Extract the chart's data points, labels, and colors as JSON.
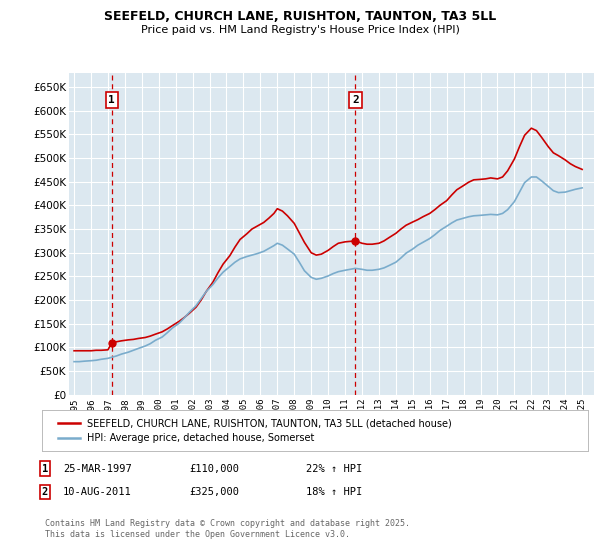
{
  "title": "SEEFELD, CHURCH LANE, RUISHTON, TAUNTON, TA3 5LL",
  "subtitle": "Price paid vs. HM Land Registry's House Price Index (HPI)",
  "legend_label_red": "SEEFELD, CHURCH LANE, RUISHTON, TAUNTON, TA3 5LL (detached house)",
  "legend_label_blue": "HPI: Average price, detached house, Somerset",
  "footnote": "Contains HM Land Registry data © Crown copyright and database right 2025.\nThis data is licensed under the Open Government Licence v3.0.",
  "annotation1_label": "1",
  "annotation1_date": "25-MAR-1997",
  "annotation1_price": "£110,000",
  "annotation1_hpi": "22% ↑ HPI",
  "annotation2_label": "2",
  "annotation2_date": "10-AUG-2011",
  "annotation2_price": "£325,000",
  "annotation2_hpi": "18% ↑ HPI",
  "red_color": "#cc0000",
  "blue_color": "#7aaccc",
  "dashed_red": "#cc0000",
  "background_plot": "#dce8f0",
  "background_fig": "#ffffff",
  "grid_color": "#ffffff",
  "annotation_box_color": "#cc0000",
  "ylim": [
    0,
    680000
  ],
  "yticks": [
    0,
    50000,
    100000,
    150000,
    200000,
    250000,
    300000,
    350000,
    400000,
    450000,
    500000,
    550000,
    600000,
    650000
  ],
  "xlim_start": 1994.7,
  "xlim_end": 2025.7,
  "sale1_x": 1997.23,
  "sale1_y": 110000,
  "sale2_x": 2011.61,
  "sale2_y": 325000,
  "red_x": [
    1995.0,
    1995.3,
    1995.6,
    1996.0,
    1996.3,
    1996.6,
    1997.0,
    1997.23,
    1997.5,
    1997.8,
    1998.2,
    1998.5,
    1998.8,
    1999.2,
    1999.5,
    1999.8,
    2000.2,
    2000.5,
    2000.8,
    2001.2,
    2001.5,
    2001.8,
    2002.2,
    2002.5,
    2002.8,
    2003.2,
    2003.5,
    2003.8,
    2004.2,
    2004.5,
    2004.8,
    2005.2,
    2005.5,
    2005.8,
    2006.2,
    2006.5,
    2006.8,
    2007.0,
    2007.3,
    2007.6,
    2008.0,
    2008.3,
    2008.6,
    2009.0,
    2009.3,
    2009.6,
    2010.0,
    2010.3,
    2010.6,
    2011.0,
    2011.3,
    2011.61,
    2012.0,
    2012.3,
    2012.6,
    2013.0,
    2013.3,
    2013.6,
    2014.0,
    2014.3,
    2014.6,
    2015.0,
    2015.3,
    2015.6,
    2016.0,
    2016.3,
    2016.6,
    2017.0,
    2017.3,
    2017.6,
    2018.0,
    2018.3,
    2018.6,
    2019.0,
    2019.3,
    2019.6,
    2020.0,
    2020.3,
    2020.6,
    2021.0,
    2021.3,
    2021.6,
    2022.0,
    2022.3,
    2022.6,
    2023.0,
    2023.3,
    2023.6,
    2024.0,
    2024.3,
    2024.6,
    2025.0
  ],
  "red_y": [
    93000,
    93000,
    93000,
    93000,
    94000,
    94000,
    95000,
    110000,
    112000,
    114000,
    116000,
    117000,
    119000,
    121000,
    124000,
    128000,
    133000,
    139000,
    146000,
    155000,
    163000,
    172000,
    185000,
    200000,
    218000,
    238000,
    258000,
    276000,
    294000,
    312000,
    328000,
    340000,
    350000,
    356000,
    364000,
    373000,
    383000,
    393000,
    388000,
    378000,
    362000,
    342000,
    322000,
    300000,
    295000,
    297000,
    305000,
    313000,
    320000,
    323000,
    324000,
    325000,
    320000,
    318000,
    318000,
    320000,
    325000,
    332000,
    341000,
    350000,
    358000,
    365000,
    370000,
    376000,
    383000,
    391000,
    400000,
    410000,
    422000,
    433000,
    442000,
    449000,
    454000,
    455000,
    456000,
    458000,
    456000,
    460000,
    473000,
    498000,
    524000,
    548000,
    563000,
    558000,
    544000,
    524000,
    511000,
    505000,
    496000,
    488000,
    482000,
    476000
  ],
  "blue_x": [
    1995.0,
    1995.3,
    1995.6,
    1996.0,
    1996.3,
    1996.6,
    1997.0,
    1997.5,
    1997.8,
    1998.2,
    1998.5,
    1998.8,
    1999.2,
    1999.5,
    1999.8,
    2000.2,
    2000.5,
    2000.8,
    2001.2,
    2001.5,
    2001.8,
    2002.2,
    2002.5,
    2002.8,
    2003.2,
    2003.5,
    2003.8,
    2004.2,
    2004.5,
    2004.8,
    2005.2,
    2005.5,
    2005.8,
    2006.2,
    2006.5,
    2006.8,
    2007.0,
    2007.3,
    2007.6,
    2008.0,
    2008.3,
    2008.6,
    2009.0,
    2009.3,
    2009.6,
    2010.0,
    2010.3,
    2010.6,
    2011.0,
    2011.3,
    2011.6,
    2012.0,
    2012.3,
    2012.6,
    2013.0,
    2013.3,
    2013.6,
    2014.0,
    2014.3,
    2014.6,
    2015.0,
    2015.3,
    2015.6,
    2016.0,
    2016.3,
    2016.6,
    2017.0,
    2017.3,
    2017.6,
    2018.0,
    2018.3,
    2018.6,
    2019.0,
    2019.3,
    2019.6,
    2020.0,
    2020.3,
    2020.6,
    2021.0,
    2021.3,
    2021.6,
    2022.0,
    2022.3,
    2022.6,
    2023.0,
    2023.3,
    2023.6,
    2024.0,
    2024.3,
    2024.6,
    2025.0
  ],
  "blue_y": [
    70000,
    70000,
    71000,
    72000,
    73000,
    75000,
    77000,
    82000,
    86000,
    90000,
    94000,
    98000,
    103000,
    108000,
    115000,
    122000,
    131000,
    141000,
    151000,
    162000,
    174000,
    188000,
    203000,
    218000,
    233000,
    247000,
    259000,
    271000,
    280000,
    287000,
    292000,
    295000,
    298000,
    303000,
    309000,
    315000,
    320000,
    316000,
    308000,
    297000,
    280000,
    262000,
    248000,
    244000,
    246000,
    251000,
    256000,
    260000,
    263000,
    265000,
    267000,
    265000,
    263000,
    263000,
    265000,
    268000,
    273000,
    280000,
    289000,
    299000,
    308000,
    316000,
    322000,
    330000,
    338000,
    347000,
    356000,
    363000,
    369000,
    373000,
    376000,
    378000,
    379000,
    380000,
    381000,
    380000,
    383000,
    391000,
    408000,
    428000,
    448000,
    460000,
    460000,
    452000,
    440000,
    431000,
    427000,
    428000,
    431000,
    434000,
    437000
  ]
}
